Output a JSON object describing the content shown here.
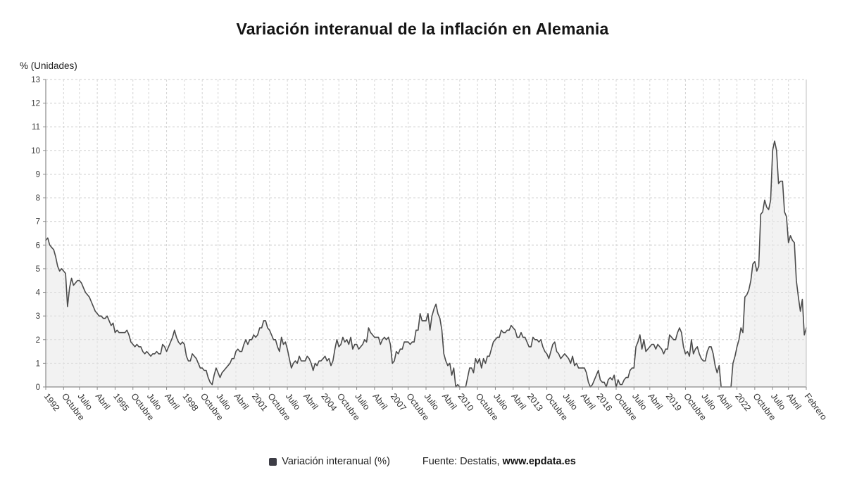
{
  "page": {
    "title": "Variación interanual de la inflación en Alemania"
  },
  "legend": {
    "series_label": "Variación interanual (%)",
    "source_prefix": "Fuente: Destatis, ",
    "source_site": "www.epdata.es",
    "swatch_color": "#3d3d46"
  },
  "chart_data": {
    "type": "area",
    "title": "Variación interanual de la inflación en Alemania",
    "ylabel": "% (Unidades)",
    "xlabel": "",
    "ylim": [
      0,
      13
    ],
    "y_ticks": [
      0,
      1,
      2,
      3,
      4,
      5,
      6,
      7,
      8,
      9,
      10,
      11,
      12,
      13
    ],
    "grid": true,
    "grid_style": "dashed",
    "legend_position": "bottom-center",
    "line_color": "#4b4b4b",
    "fill_color": "#e8e8e8",
    "fill_opacity": 0.55,
    "x_frequency": "monthly",
    "x_range": "1992 - Febrero 2024",
    "x_tick_labels": [
      "1992",
      "Octubre",
      "Julio",
      "Abril",
      "1995",
      "Octubre",
      "Julio",
      "Abril",
      "1998",
      "Octubre",
      "Julio",
      "Abril",
      "2001",
      "Octubre",
      "Julio",
      "Abril",
      "2004",
      "Octubre",
      "Julio",
      "Abril",
      "2007",
      "Octubre",
      "Julio",
      "Abril",
      "2010",
      "Octubre",
      "Julio",
      "Abril",
      "2013",
      "Octubre",
      "Julio",
      "Abril",
      "2016",
      "Octubre",
      "Julio",
      "Abril",
      "2019",
      "Octubre",
      "Julio",
      "Abril",
      "2022",
      "Octubre",
      "Julio",
      "Abril",
      "Febrero"
    ],
    "series": [
      {
        "name": "Variación interanual (%)",
        "start": "febrero 1992",
        "values_by_year": {
          "1992": [
            6.2,
            6.3,
            6.0,
            5.9,
            5.8,
            5.5,
            5.1,
            4.9,
            5.0,
            4.9,
            4.8
          ],
          "1993": [
            3.4,
            4.2,
            4.6,
            4.3,
            4.4,
            4.5,
            4.5,
            4.4,
            4.2,
            4.0,
            3.9,
            3.8
          ],
          "1994": [
            3.6,
            3.4,
            3.2,
            3.1,
            3.0,
            3.0,
            2.9,
            2.9,
            3.0,
            2.8,
            2.6,
            2.7
          ],
          "1995": [
            2.3,
            2.4,
            2.3,
            2.3,
            2.3,
            2.3,
            2.4,
            2.2,
            1.9,
            1.8,
            1.7,
            1.8
          ],
          "1996": [
            1.7,
            1.7,
            1.5,
            1.4,
            1.5,
            1.4,
            1.3,
            1.4,
            1.4,
            1.5,
            1.4,
            1.4
          ],
          "1997": [
            1.8,
            1.7,
            1.5,
            1.7,
            1.9,
            2.1,
            2.4,
            2.1,
            1.9,
            1.8,
            1.9,
            1.8
          ],
          "1998": [
            1.3,
            1.1,
            1.1,
            1.4,
            1.3,
            1.2,
            1.0,
            0.8,
            0.8,
            0.7,
            0.7,
            0.4
          ],
          "1999": [
            0.2,
            0.1,
            0.5,
            0.8,
            0.6,
            0.4,
            0.6,
            0.7,
            0.8,
            0.9,
            1.0,
            1.2
          ],
          "2000": [
            1.2,
            1.5,
            1.6,
            1.5,
            1.5,
            1.8,
            2.0,
            1.8,
            2.0,
            2.0,
            2.2,
            2.1
          ],
          "2001": [
            2.2,
            2.5,
            2.5,
            2.8,
            2.8,
            2.5,
            2.4,
            2.2,
            2.0,
            2.0,
            1.7,
            1.5
          ],
          "2002": [
            2.1,
            1.8,
            1.9,
            1.6,
            1.2,
            0.8,
            1.0,
            1.1,
            1.0,
            1.3,
            1.1,
            1.1
          ],
          "2003": [
            1.1,
            1.3,
            1.2,
            1.0,
            0.7,
            1.0,
            0.9,
            1.1,
            1.1,
            1.2,
            1.3,
            1.1
          ],
          "2004": [
            1.2,
            0.9,
            1.1,
            1.6,
            2.0,
            1.7,
            1.8,
            2.1,
            1.9,
            2.0,
            1.8,
            2.1
          ],
          "2005": [
            1.6,
            1.8,
            1.8,
            1.6,
            1.7,
            1.8,
            2.0,
            1.9,
            2.5,
            2.3,
            2.2,
            2.1
          ],
          "2006": [
            2.1,
            2.1,
            1.8,
            2.0,
            2.1,
            2.0,
            2.1,
            1.8,
            1.0,
            1.1,
            1.5,
            1.4
          ],
          "2007": [
            1.6,
            1.6,
            1.9,
            1.9,
            1.9,
            1.8,
            1.9,
            1.9,
            2.4,
            2.4,
            3.1,
            2.8
          ],
          "2008": [
            2.8,
            2.8,
            3.1,
            2.4,
            3.0,
            3.3,
            3.5,
            3.1,
            2.9,
            2.4,
            1.4,
            1.1
          ],
          "2009": [
            0.9,
            1.0,
            0.5,
            0.8,
            0.0,
            0.1,
            0.0,
            0.0,
            0.0,
            0.0,
            0.4,
            0.8
          ],
          "2010": [
            0.8,
            0.6,
            1.2,
            1.0,
            1.2,
            0.8,
            1.2,
            1.0,
            1.3,
            1.3,
            1.6,
            1.9
          ],
          "2011": [
            2.0,
            2.1,
            2.1,
            2.4,
            2.3,
            2.3,
            2.4,
            2.4,
            2.6,
            2.5,
            2.4,
            2.1
          ],
          "2012": [
            2.1,
            2.3,
            2.1,
            2.1,
            1.9,
            1.7,
            1.7,
            2.1,
            2.0,
            2.0,
            1.9,
            2.0
          ],
          "2013": [
            1.7,
            1.5,
            1.4,
            1.2,
            1.5,
            1.8,
            1.9,
            1.5,
            1.4,
            1.2,
            1.3,
            1.4
          ],
          "2014": [
            1.3,
            1.2,
            1.0,
            1.3,
            0.9,
            1.0,
            0.8,
            0.8,
            0.8,
            0.8,
            0.6,
            0.2
          ],
          "2015": [
            0.0,
            0.1,
            0.3,
            0.5,
            0.7,
            0.3,
            0.2,
            0.2,
            0.0,
            0.3,
            0.4,
            0.3
          ],
          "2016": [
            0.5,
            0.0,
            0.3,
            0.1,
            0.1,
            0.3,
            0.4,
            0.4,
            0.7,
            0.8,
            0.8,
            1.7
          ],
          "2017": [
            1.9,
            2.2,
            1.6,
            2.0,
            1.5,
            1.6,
            1.7,
            1.8,
            1.8,
            1.6,
            1.8,
            1.7
          ],
          "2018": [
            1.6,
            1.4,
            1.6,
            1.6,
            2.2,
            2.1,
            2.0,
            2.0,
            2.3,
            2.5,
            2.3,
            1.7
          ],
          "2019": [
            1.4,
            1.5,
            1.3,
            2.0,
            1.4,
            1.6,
            1.7,
            1.4,
            1.2,
            1.1,
            1.1,
            1.5
          ],
          "2020": [
            1.7,
            1.7,
            1.4,
            0.9,
            0.6,
            0.9,
            0.0,
            0.0,
            0.0,
            0.0,
            0.0,
            0.0
          ],
          "2021": [
            1.0,
            1.3,
            1.7,
            2.0,
            2.5,
            2.3,
            3.8,
            3.9,
            4.1,
            4.5,
            5.2,
            5.3
          ],
          "2022": [
            4.9,
            5.1,
            7.3,
            7.4,
            7.9,
            7.6,
            7.5,
            7.9,
            10.0,
            10.4,
            10.0,
            8.6
          ],
          "2023": [
            8.7,
            8.7,
            7.4,
            7.2,
            6.1,
            6.4,
            6.2,
            6.1,
            4.5,
            3.8,
            3.2,
            3.7
          ],
          "2024": [
            2.2,
            2.5
          ]
        }
      }
    ]
  }
}
